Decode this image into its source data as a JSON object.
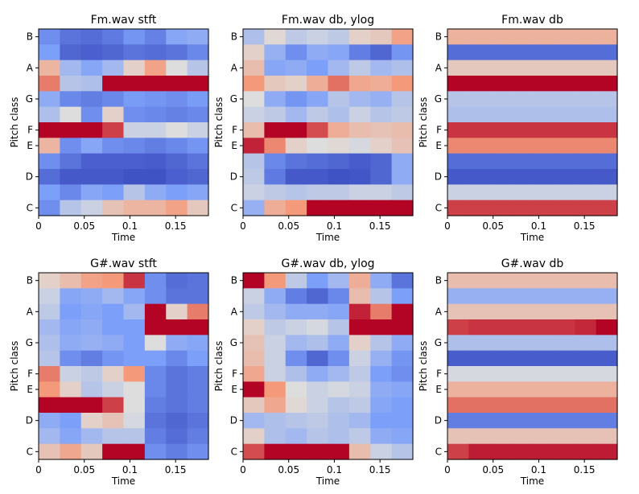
{
  "chart_data": [
    {
      "type": "heatmap",
      "title": "Fm.wav stft",
      "xlabel": "Time",
      "ylabel": "Pitch class",
      "xlim": [
        0,
        0.186
      ],
      "xticks": [
        0,
        0.05,
        0.1,
        0.15
      ],
      "xtick_labels": [
        "0",
        "0.05",
        "0.1",
        "0.15"
      ],
      "yticks_row_from_bottom": [
        0,
        2,
        4,
        5,
        7,
        9,
        11
      ],
      "ytick_labels": [
        "C",
        "D",
        "E",
        "F",
        "G",
        "A",
        "B"
      ],
      "colormap": "coolwarm",
      "vmin": 0,
      "vmax": 1,
      "rows": 12,
      "cols": 8,
      "values_top_to_bottom": [
        [
          0.2,
          0.12,
          0.1,
          0.14,
          0.22,
          0.16,
          0.28,
          0.3
        ],
        [
          0.25,
          0.08,
          0.06,
          0.08,
          0.12,
          0.1,
          0.12,
          0.18
        ],
        [
          0.65,
          0.35,
          0.28,
          0.35,
          0.55,
          0.72,
          0.5,
          0.4
        ],
        [
          0.8,
          0.4,
          0.38,
          1.0,
          1.0,
          1.0,
          1.0,
          1.0
        ],
        [
          0.3,
          0.18,
          0.15,
          0.18,
          0.24,
          0.22,
          0.2,
          0.24
        ],
        [
          0.38,
          0.5,
          0.2,
          0.55,
          0.2,
          0.18,
          0.16,
          0.18
        ],
        [
          1.0,
          1.0,
          1.0,
          0.9,
          0.45,
          0.45,
          0.5,
          0.45
        ],
        [
          0.65,
          0.2,
          0.28,
          0.2,
          0.18,
          0.15,
          0.18,
          0.22
        ],
        [
          0.2,
          0.12,
          0.06,
          0.06,
          0.06,
          0.05,
          0.08,
          0.12
        ],
        [
          0.1,
          0.04,
          0.04,
          0.04,
          0.02,
          0.02,
          0.06,
          0.08
        ],
        [
          0.25,
          0.18,
          0.28,
          0.25,
          0.4,
          0.3,
          0.25,
          0.28
        ],
        [
          0.2,
          0.4,
          0.45,
          0.6,
          0.65,
          0.65,
          0.72,
          0.58
        ]
      ]
    },
    {
      "type": "heatmap",
      "title": "Fm.wav db, ylog",
      "xlabel": "Time",
      "ylabel": "Pitch class",
      "xlim": [
        0,
        0.186
      ],
      "xticks": [
        0,
        0.05,
        0.1,
        0.15
      ],
      "xtick_labels": [
        "0",
        "0.05",
        "0.1",
        "0.15"
      ],
      "yticks_row_from_bottom": [
        0,
        2,
        4,
        5,
        7,
        9,
        11
      ],
      "ytick_labels": [
        "C",
        "D",
        "E",
        "F",
        "G",
        "A",
        "B"
      ],
      "colormap": "coolwarm",
      "vmin": 0,
      "vmax": 1,
      "rows": 12,
      "cols": 8,
      "values_top_to_bottom": [
        [
          0.38,
          0.52,
          0.42,
          0.45,
          0.42,
          0.55,
          0.58,
          0.72
        ],
        [
          0.55,
          0.32,
          0.2,
          0.3,
          0.28,
          0.15,
          0.08,
          0.22
        ],
        [
          0.62,
          0.28,
          0.3,
          0.25,
          0.35,
          0.42,
          0.35,
          0.38
        ],
        [
          0.75,
          0.58,
          0.55,
          0.68,
          0.82,
          0.7,
          0.68,
          0.75
        ],
        [
          0.5,
          0.3,
          0.22,
          0.28,
          0.4,
          0.35,
          0.32,
          0.4
        ],
        [
          0.45,
          0.42,
          0.35,
          0.42,
          0.38,
          0.45,
          0.4,
          0.42
        ],
        [
          0.62,
          1.0,
          1.0,
          0.88,
          0.68,
          0.62,
          0.6,
          0.62
        ],
        [
          0.95,
          0.78,
          0.55,
          0.5,
          0.52,
          0.48,
          0.55,
          0.6
        ],
        [
          0.4,
          0.18,
          0.12,
          0.1,
          0.08,
          0.05,
          0.08,
          0.3
        ],
        [
          0.42,
          0.14,
          0.04,
          0.04,
          0.02,
          0.03,
          0.08,
          0.3
        ],
        [
          0.45,
          0.42,
          0.4,
          0.42,
          0.42,
          0.45,
          0.45,
          0.42
        ],
        [
          0.32,
          0.68,
          0.75,
          1.0,
          1.0,
          1.0,
          1.0,
          1.0
        ]
      ]
    },
    {
      "type": "heatmap",
      "title": "Fm.wav db",
      "xlabel": "Time",
      "ylabel": "Pitch class",
      "xlim": [
        0,
        0.186
      ],
      "xticks": [
        0,
        0.05,
        0.1,
        0.15
      ],
      "xtick_labels": [
        "0",
        "0.05",
        "0.1",
        "0.15"
      ],
      "yticks_row_from_bottom": [
        0,
        2,
        4,
        5,
        7,
        9,
        11
      ],
      "ytick_labels": [
        "C",
        "D",
        "E",
        "F",
        "G",
        "A",
        "B"
      ],
      "colormap": "coolwarm",
      "vmin": 0,
      "vmax": 1,
      "rows": 12,
      "cols": 8,
      "values_top_to_bottom": [
        [
          0.66,
          0.66,
          0.66,
          0.66,
          0.66,
          0.66,
          0.66,
          0.66
        ],
        [
          0.1,
          0.1,
          0.1,
          0.1,
          0.1,
          0.1,
          0.1,
          0.1
        ],
        [
          0.58,
          0.58,
          0.58,
          0.58,
          0.58,
          0.58,
          0.58,
          0.58
        ],
        [
          1.0,
          1.0,
          1.0,
          1.0,
          1.0,
          1.0,
          1.0,
          1.0
        ],
        [
          0.4,
          0.4,
          0.4,
          0.4,
          0.4,
          0.4,
          0.4,
          0.4
        ],
        [
          0.38,
          0.38,
          0.38,
          0.38,
          0.38,
          0.38,
          0.38,
          0.38
        ],
        [
          0.92,
          0.92,
          0.92,
          0.92,
          0.92,
          0.92,
          0.92,
          0.92
        ],
        [
          0.78,
          0.78,
          0.78,
          0.78,
          0.78,
          0.78,
          0.78,
          0.78
        ],
        [
          0.1,
          0.1,
          0.1,
          0.1,
          0.1,
          0.1,
          0.1,
          0.1
        ],
        [
          0.04,
          0.04,
          0.04,
          0.04,
          0.04,
          0.04,
          0.04,
          0.04
        ],
        [
          0.45,
          0.45,
          0.45,
          0.45,
          0.45,
          0.45,
          0.45,
          0.45
        ],
        [
          0.9,
          0.9,
          0.9,
          0.9,
          0.9,
          0.9,
          0.9,
          0.9
        ]
      ]
    },
    {
      "type": "heatmap",
      "title": "G#.wav stft",
      "xlabel": "Time",
      "ylabel": "Pitch class",
      "xlim": [
        0,
        0.186
      ],
      "xticks": [
        0,
        0.05,
        0.1,
        0.15
      ],
      "xtick_labels": [
        "0",
        "0.05",
        "0.1",
        "0.15"
      ],
      "yticks_row_from_bottom": [
        0,
        2,
        4,
        5,
        7,
        9,
        11
      ],
      "ytick_labels": [
        "C",
        "D",
        "E",
        "F",
        "G",
        "A",
        "B"
      ],
      "colormap": "coolwarm",
      "vmin": 0,
      "vmax": 1,
      "rows": 12,
      "cols": 8,
      "values_top_to_bottom": [
        [
          0.55,
          0.62,
          0.72,
          0.75,
          0.92,
          0.2,
          0.1,
          0.12
        ],
        [
          0.45,
          0.28,
          0.3,
          0.35,
          0.28,
          0.2,
          0.12,
          0.12
        ],
        [
          0.42,
          0.25,
          0.28,
          0.25,
          0.35,
          1.0,
          0.55,
          0.8
        ],
        [
          0.35,
          0.28,
          0.3,
          0.25,
          0.25,
          1.0,
          1.0,
          1.0
        ],
        [
          0.38,
          0.3,
          0.32,
          0.3,
          0.25,
          0.5,
          0.3,
          0.28
        ],
        [
          0.4,
          0.2,
          0.15,
          0.22,
          0.25,
          0.25,
          0.18,
          0.25
        ],
        [
          0.8,
          0.45,
          0.42,
          0.55,
          0.75,
          0.18,
          0.12,
          0.15
        ],
        [
          0.75,
          0.55,
          0.4,
          0.45,
          0.5,
          0.18,
          0.12,
          0.15
        ],
        [
          1.0,
          1.0,
          1.0,
          0.9,
          0.5,
          0.15,
          0.12,
          0.15
        ],
        [
          0.3,
          0.25,
          0.55,
          0.6,
          0.48,
          0.12,
          0.08,
          0.12
        ],
        [
          0.35,
          0.28,
          0.35,
          0.4,
          0.4,
          0.15,
          0.1,
          0.15
        ],
        [
          0.6,
          0.7,
          0.58,
          1.0,
          1.0,
          0.2,
          0.15,
          0.2
        ]
      ]
    },
    {
      "type": "heatmap",
      "title": "G#.wav db, ylog",
      "xlabel": "Time",
      "ylabel": "Pitch class",
      "xlim": [
        0,
        0.186
      ],
      "xticks": [
        0,
        0.05,
        0.1,
        0.15
      ],
      "xtick_labels": [
        "0",
        "0.05",
        "0.1",
        "0.15"
      ],
      "yticks_row_from_bottom": [
        0,
        2,
        4,
        5,
        7,
        9,
        11
      ],
      "ytick_labels": [
        "C",
        "D",
        "E",
        "F",
        "G",
        "A",
        "B"
      ],
      "colormap": "coolwarm",
      "vmin": 0,
      "vmax": 1,
      "rows": 12,
      "cols": 8,
      "values_top_to_bottom": [
        [
          1.0,
          0.75,
          0.42,
          0.25,
          0.35,
          0.68,
          0.3,
          0.12
        ],
        [
          0.45,
          0.3,
          0.15,
          0.08,
          0.18,
          0.62,
          0.4,
          0.25
        ],
        [
          0.42,
          0.35,
          0.3,
          0.3,
          0.28,
          0.95,
          0.8,
          1.0
        ],
        [
          0.55,
          0.42,
          0.45,
          0.48,
          0.4,
          1.0,
          1.0,
          1.0
        ],
        [
          0.6,
          0.45,
          0.35,
          0.38,
          0.3,
          0.55,
          0.4,
          0.3
        ],
        [
          0.62,
          0.45,
          0.2,
          0.08,
          0.2,
          0.45,
          0.32,
          0.22
        ],
        [
          0.7,
          0.45,
          0.38,
          0.3,
          0.35,
          0.42,
          0.25,
          0.2
        ],
        [
          1.0,
          0.75,
          0.5,
          0.45,
          0.48,
          0.45,
          0.3,
          0.28
        ],
        [
          0.58,
          0.7,
          0.52,
          0.45,
          0.4,
          0.42,
          0.28,
          0.25
        ],
        [
          0.35,
          0.38,
          0.4,
          0.42,
          0.38,
          0.35,
          0.25,
          0.25
        ],
        [
          0.55,
          0.38,
          0.35,
          0.4,
          0.38,
          0.42,
          0.3,
          0.28
        ],
        [
          0.88,
          1.0,
          1.0,
          1.0,
          1.0,
          0.62,
          0.45,
          0.4
        ]
      ]
    },
    {
      "type": "heatmap",
      "title": "G#.wav db",
      "xlabel": "Time",
      "ylabel": "Pitch class",
      "xlim": [
        0,
        0.186
      ],
      "xticks": [
        0,
        0.05,
        0.1,
        0.15
      ],
      "xtick_labels": [
        "0",
        "0.05",
        "0.1",
        "0.15"
      ],
      "yticks_row_from_bottom": [
        0,
        2,
        4,
        5,
        7,
        9,
        11
      ],
      "ytick_labels": [
        "C",
        "D",
        "E",
        "F",
        "G",
        "A",
        "B"
      ],
      "colormap": "coolwarm",
      "vmin": 0,
      "vmax": 1,
      "rows": 12,
      "cols": 8,
      "values_top_to_bottom": [
        [
          0.62,
          0.62,
          0.62,
          0.62,
          0.62,
          0.62,
          0.62,
          0.62
        ],
        [
          0.32,
          0.32,
          0.32,
          0.32,
          0.32,
          0.32,
          0.32,
          0.32
        ],
        [
          0.6,
          0.6,
          0.6,
          0.6,
          0.6,
          0.6,
          0.6,
          0.6
        ],
        [
          0.9,
          0.92,
          0.92,
          0.92,
          0.92,
          0.92,
          0.94,
          1.0
        ],
        [
          0.38,
          0.38,
          0.38,
          0.38,
          0.38,
          0.38,
          0.38,
          0.38
        ],
        [
          0.05,
          0.05,
          0.05,
          0.05,
          0.05,
          0.05,
          0.05,
          0.05
        ],
        [
          0.48,
          0.48,
          0.48,
          0.48,
          0.48,
          0.48,
          0.48,
          0.48
        ],
        [
          0.66,
          0.66,
          0.66,
          0.66,
          0.66,
          0.66,
          0.66,
          0.66
        ],
        [
          0.82,
          0.82,
          0.82,
          0.82,
          0.82,
          0.82,
          0.82,
          0.82
        ],
        [
          0.15,
          0.15,
          0.15,
          0.15,
          0.15,
          0.15,
          0.15,
          0.15
        ],
        [
          0.6,
          0.6,
          0.6,
          0.6,
          0.6,
          0.6,
          0.6,
          0.6
        ],
        [
          0.9,
          0.96,
          0.96,
          0.96,
          0.96,
          0.96,
          0.96,
          0.96
        ]
      ]
    }
  ]
}
